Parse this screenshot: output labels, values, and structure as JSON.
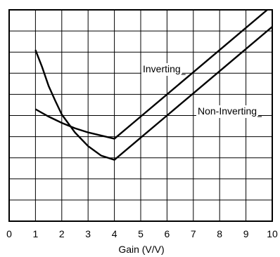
{
  "chart_data": {
    "type": "line",
    "title": "",
    "xlabel": "Gain (V/V)",
    "ylabel": "",
    "xlim": [
      0,
      10
    ],
    "ylim": [
      0,
      10
    ],
    "x_ticks": [
      "0",
      "1",
      "2",
      "3",
      "4",
      "5",
      "6",
      "7",
      "8",
      "9",
      "10"
    ],
    "grid": true,
    "legend": "none",
    "series": [
      {
        "name": "Inverting",
        "x": [
          1,
          1.5,
          2,
          2.5,
          3,
          3.5,
          4,
          5,
          6,
          7,
          8,
          9,
          10
        ],
        "y": [
          5.3,
          4.95,
          4.65,
          4.4,
          4.2,
          4.05,
          3.9,
          4.95,
          6.0,
          7.05,
          8.1,
          9.15,
          10.2
        ]
      },
      {
        "name": "Non-Inverting",
        "x": [
          1,
          1.25,
          1.5,
          1.75,
          2,
          2.5,
          3,
          3.5,
          4,
          5,
          6,
          7,
          8,
          9,
          10
        ],
        "y": [
          8.1,
          7.3,
          6.4,
          5.7,
          5.05,
          4.2,
          3.55,
          3.1,
          2.9,
          3.95,
          5.0,
          6.05,
          7.1,
          8.15,
          9.2
        ]
      }
    ]
  }
}
